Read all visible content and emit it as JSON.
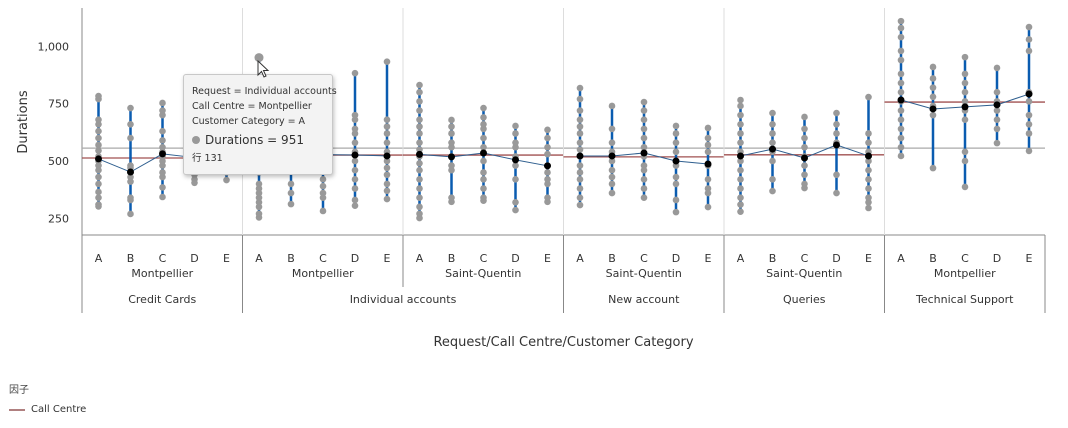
{
  "chart_data": {
    "type": "variability",
    "ylabel": "Durations",
    "xlabel": "Request/Call Centre/Customer Category",
    "ylim": [
      177,
      1167
    ],
    "yticks": [
      250,
      500,
      750,
      1000
    ],
    "ytick_labels": [
      "250",
      "500",
      "750",
      "1,000"
    ],
    "grand_mean": 556,
    "colors": {
      "points": "#999999",
      "range": "#0a5cb0",
      "mean_line": "#2f5f8f",
      "mean_point": "#000000",
      "group_mean": "#a05050",
      "grand_mean": "#aaaaaa"
    },
    "cells": [
      {
        "request": "Credit Cards",
        "call_centre": "Montpellier",
        "call_centre_mean": 513,
        "groups": [
          {
            "category": "A",
            "mean": 509,
            "points": [
              302,
              310,
              340,
              365,
              400,
              430,
              460,
              480,
              500,
              520,
              545,
              570,
              600,
              630,
              660,
              680,
              770,
              783
            ]
          },
          {
            "category": "B",
            "mean": 452,
            "points": [
              269,
              330,
              340,
              410,
              430,
              450,
              470,
              480,
              600,
              660,
              731
            ]
          },
          {
            "category": "C",
            "mean": 531,
            "points": [
              343,
              385,
              430,
              450,
              480,
              500,
              520,
              540,
              560,
              590,
              630,
              700,
              720,
              753
            ]
          },
          {
            "category": "D",
            "mean": 515,
            "points": [
              405,
              420,
              440,
              560,
              600
            ]
          },
          {
            "category": "E",
            "mean": 517,
            "points": [
              417,
              450,
              560
            ]
          }
        ]
      },
      {
        "request": "Individual accounts",
        "call_centre": "Montpellier",
        "call_centre_mean": 526,
        "groups": [
          {
            "category": "A",
            "mean": 530,
            "points": [
              254,
              270,
              300,
              320,
              340,
              360,
              380,
              400,
              450,
              500,
              560,
              951
            ]
          },
          {
            "category": "B",
            "mean": 525,
            "points": [
              312,
              360,
              400,
              480,
              540
            ]
          },
          {
            "category": "C",
            "mean": 528,
            "points": [
              282,
              340,
              360,
              390,
              420,
              560
            ]
          },
          {
            "category": "D",
            "mean": 526,
            "points": [
              305,
              330,
              380,
              420,
              460,
              500,
              540,
              580,
              620,
              640,
              680,
              700,
              883
            ]
          },
          {
            "category": "E",
            "mean": 522,
            "points": [
              334,
              370,
              400,
              440,
              470,
              500,
              540,
              580,
              620,
              650,
              680,
              933
            ]
          }
        ]
      },
      {
        "request": "Individual accounts",
        "call_centre": "Saint-Quentin",
        "call_centre_mean": 526,
        "groups": [
          {
            "category": "A",
            "mean": 529,
            "points": [
              251,
              270,
              300,
              340,
              380,
              420,
              460,
              490,
              520,
              550,
              580,
              620,
              650,
              680,
              720,
              760,
              800,
              831
            ]
          },
          {
            "category": "B",
            "mean": 518,
            "points": [
              322,
              340,
              460,
              480,
              520,
              560,
              580,
              620,
              650,
              679
            ]
          },
          {
            "category": "C",
            "mean": 535,
            "points": [
              327,
              340,
              380,
              420,
              450,
              500,
              560,
              600,
              640,
              660,
              690,
              731
            ]
          },
          {
            "category": "D",
            "mean": 505,
            "points": [
              286,
              320,
              420,
              480,
              520,
              560,
              580,
              620,
              653
            ]
          },
          {
            "category": "E",
            "mean": 479,
            "points": [
              322,
              340,
              400,
              420,
              450,
              480,
              530,
              560,
              600,
              636
            ]
          }
        ]
      },
      {
        "request": "New account",
        "call_centre": "Saint-Quentin",
        "call_centre_mean": 518,
        "groups": [
          {
            "category": "A",
            "mean": 522,
            "points": [
              308,
              340,
              380,
              420,
              450,
              480,
              520,
              550,
              580,
              620,
              650,
              680,
              720,
              770,
              818
            ]
          },
          {
            "category": "B",
            "mean": 522,
            "points": [
              360,
              400,
              430,
              460,
              500,
              540,
              580,
              640,
              740
            ]
          },
          {
            "category": "C",
            "mean": 535,
            "points": [
              340,
              380,
              420,
              460,
              480,
              520,
              560,
              600,
              640,
              680,
              720,
              757
            ]
          },
          {
            "category": "D",
            "mean": 500,
            "points": [
              277,
              330,
              400,
              430,
              480,
              540,
              580,
              620,
              653
            ]
          },
          {
            "category": "E",
            "mean": 487,
            "points": [
              299,
              360,
              380,
              420,
              480,
              540,
              570,
              600,
              644
            ]
          }
        ]
      },
      {
        "request": "Queries",
        "call_centre": "Saint-Quentin",
        "call_centre_mean": 527,
        "groups": [
          {
            "category": "A",
            "mean": 522,
            "points": [
              279,
              310,
              340,
              380,
              420,
              460,
              500,
              540,
              580,
              620,
              660,
              700,
              740,
              766
            ]
          },
          {
            "category": "B",
            "mean": 552,
            "points": [
              369,
              420,
              500,
              540,
              580,
              620,
              660,
              709
            ]
          },
          {
            "category": "C",
            "mean": 513,
            "points": [
              382,
              400,
              440,
              480,
              520,
              560,
              600,
              640,
              692
            ]
          },
          {
            "category": "D",
            "mean": 570,
            "points": [
              360,
              440,
              580,
              620,
              660,
              709
            ]
          },
          {
            "category": "E",
            "mean": 522,
            "points": [
              295,
              320,
              340,
              380,
              420,
              460,
              500,
              540,
              580,
              620,
              779
            ]
          }
        ]
      },
      {
        "request": "Technical Support",
        "call_centre": "Montpellier",
        "call_centre_mean": 757,
        "groups": [
          {
            "category": "A",
            "mean": 766,
            "points": [
              522,
              560,
              600,
              640,
              680,
              720,
              760,
              800,
              840,
              880,
              940,
              980,
              1040,
              1080,
              1110
            ]
          },
          {
            "category": "B",
            "mean": 727,
            "points": [
              469,
              700,
              740,
              780,
              820,
              860,
              910
            ]
          },
          {
            "category": "C",
            "mean": 736,
            "points": [
              387,
              500,
              540,
              680,
              720,
              760,
              800,
              840,
              880,
              953
            ]
          },
          {
            "category": "D",
            "mean": 745,
            "points": [
              578,
              640,
              680,
              720,
              760,
              800,
              906
            ]
          },
          {
            "category": "E",
            "mean": 792,
            "points": [
              544,
              620,
              660,
              700,
              760,
              800,
              980,
              1030,
              1084
            ]
          }
        ]
      }
    ]
  },
  "tooltip": {
    "line1": "Request = Individual accounts",
    "line2": "Call Centre = Montpellier",
    "line3": "Customer Category = A",
    "value": "Durations = 951",
    "row": "行 131"
  },
  "legend": {
    "title": "因子",
    "items": [
      {
        "label": "Call Centre",
        "color": "#b08080"
      }
    ]
  }
}
